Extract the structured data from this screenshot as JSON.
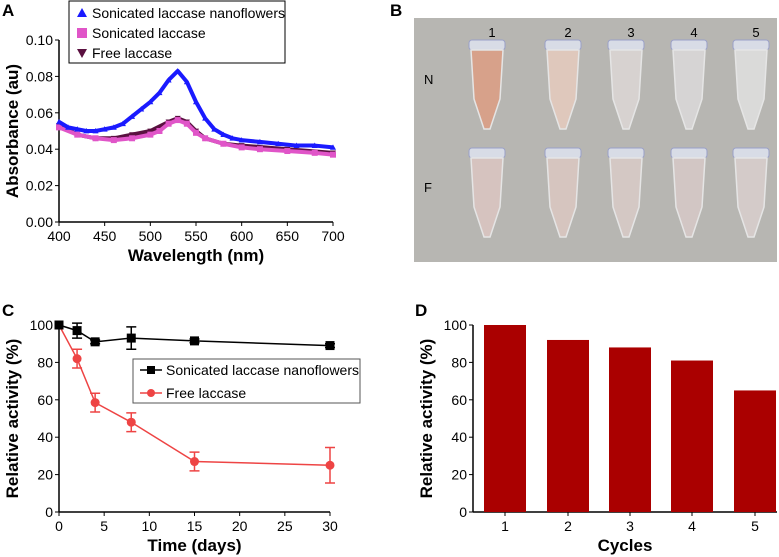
{
  "chart_data": [
    {
      "panel": "A",
      "type": "line",
      "xlabel": "Wavelength (nm)",
      "ylabel": "Absorbance (au)",
      "xlim": [
        400,
        700
      ],
      "ylim": [
        0,
        0.1
      ],
      "xticks": [
        "400",
        "450",
        "500",
        "550",
        "600",
        "650",
        "700"
      ],
      "yticks": [
        "0.00",
        "0.02",
        "0.04",
        "0.06",
        "0.08",
        "0.10"
      ],
      "legend_position": "top-left",
      "series": [
        {
          "name": "Sonicated laccase nanoflowers",
          "color": "#1a1aff",
          "marker": "triangle-up",
          "x": [
            400,
            410,
            420,
            430,
            440,
            450,
            460,
            470,
            480,
            490,
            500,
            510,
            520,
            530,
            540,
            550,
            560,
            570,
            580,
            590,
            600,
            620,
            640,
            660,
            680,
            700
          ],
          "y": [
            0.055,
            0.052,
            0.051,
            0.05,
            0.05,
            0.051,
            0.052,
            0.054,
            0.058,
            0.062,
            0.066,
            0.071,
            0.078,
            0.083,
            0.077,
            0.066,
            0.057,
            0.051,
            0.048,
            0.046,
            0.045,
            0.044,
            0.043,
            0.042,
            0.042,
            0.041
          ]
        },
        {
          "name": "Sonicated laccase",
          "color": "#e055c8",
          "marker": "square",
          "x": [
            400,
            420,
            440,
            460,
            480,
            500,
            510,
            520,
            530,
            540,
            550,
            560,
            580,
            600,
            620,
            650,
            680,
            700
          ],
          "y": [
            0.052,
            0.048,
            0.046,
            0.045,
            0.046,
            0.048,
            0.05,
            0.054,
            0.056,
            0.054,
            0.049,
            0.046,
            0.043,
            0.041,
            0.04,
            0.039,
            0.038,
            0.037
          ]
        },
        {
          "name": "Free laccase",
          "color": "#5a1040",
          "marker": "triangle-down",
          "x": [
            400,
            420,
            440,
            460,
            480,
            500,
            520,
            530,
            540,
            550,
            560,
            580,
            600,
            650,
            700
          ],
          "y": [
            0.053,
            0.048,
            0.046,
            0.046,
            0.048,
            0.05,
            0.055,
            0.057,
            0.055,
            0.05,
            0.046,
            0.043,
            0.042,
            0.04,
            0.038
          ]
        }
      ]
    },
    {
      "panel": "C",
      "type": "line",
      "xlabel": "Time (days)",
      "ylabel": "Relative activity (%)",
      "xlim": [
        0,
        30
      ],
      "ylim": [
        0,
        100
      ],
      "xticks": [
        "0",
        "5",
        "10",
        "15",
        "20",
        "25",
        "30"
      ],
      "yticks": [
        "0",
        "20",
        "40",
        "60",
        "80",
        "100"
      ],
      "legend_position": "center-right",
      "series": [
        {
          "name": "Sonicated laccase nanoflowers",
          "color": "#000000",
          "marker": "square",
          "x": [
            0,
            2,
            4,
            8,
            15,
            30
          ],
          "y": [
            100,
            97,
            91,
            93,
            91.5,
            89
          ],
          "err": [
            0,
            4,
            1,
            6,
            1,
            1
          ]
        },
        {
          "name": "Free laccase",
          "color": "#ee4444",
          "marker": "circle",
          "x": [
            0,
            2,
            4,
            8,
            15,
            30
          ],
          "y": [
            100,
            82,
            58.5,
            48,
            27,
            25
          ],
          "err": [
            0,
            5,
            5,
            5,
            5,
            9.5
          ]
        }
      ]
    },
    {
      "panel": "D",
      "type": "bar",
      "xlabel": "Cycles",
      "ylabel": "Relative activity (%)",
      "categories": [
        "1",
        "2",
        "3",
        "4",
        "5"
      ],
      "values": [
        100,
        92,
        88,
        81,
        65
      ],
      "ylim": [
        0,
        100
      ],
      "yticks": [
        "0",
        "20",
        "40",
        "60",
        "80",
        "100"
      ],
      "color": "#aa0000"
    }
  ],
  "panels": {
    "a": "A",
    "b": "B",
    "c": "C",
    "d": "D"
  },
  "photo": {
    "columns": [
      "1",
      "2",
      "3",
      "4",
      "5"
    ],
    "rows": [
      "N",
      "F"
    ],
    "tube_colors": {
      "N": [
        "#d9a088",
        "#e2c9bd",
        "#d9d4d2",
        "#d8d6d6",
        "#dcdcdc"
      ],
      "F": [
        "#d8c4c0",
        "#d8c6c0",
        "#d6c9c6",
        "#d4c7c5",
        "#d6cdcb"
      ]
    }
  }
}
